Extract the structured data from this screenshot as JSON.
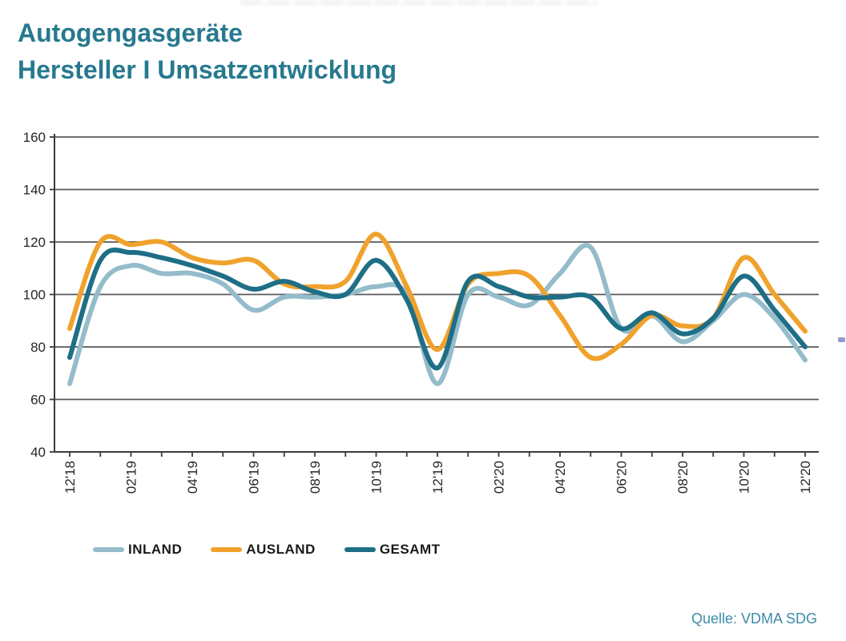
{
  "page": {
    "title_line1": "Autogengasgeräte",
    "title_line2": "Hersteller I Umsatzentwicklung",
    "source": "Quelle: VDMA SDG"
  },
  "chart_data": {
    "type": "line",
    "title": "Autogengasgeräte Hersteller I Umsatzentwicklung",
    "xlabel": "",
    "ylabel": "",
    "ylim": [
      40,
      160
    ],
    "y_ticks": [
      40,
      60,
      80,
      100,
      120,
      140,
      160
    ],
    "grid": "horizontal",
    "legend_position": "bottom",
    "x_label_every": 2,
    "x_categories": [
      "12'18",
      "01'19",
      "02'19",
      "03'19",
      "04'19",
      "05'19",
      "06'19",
      "07'19",
      "08'19",
      "09'19",
      "10'19",
      "11'19",
      "12'19",
      "01'20",
      "02'20",
      "03'20",
      "04'20",
      "05'20",
      "06'20",
      "07'20",
      "08'20",
      "09'20",
      "10'20",
      "11'20",
      "12'20"
    ],
    "shown_x_tick_labels": [
      "12'18",
      "02'19",
      "04'19",
      "06'19",
      "08'19",
      "10'19",
      "12'19",
      "02'20",
      "04'20",
      "06'20",
      "08'20",
      "10'20",
      "12'20"
    ],
    "series": [
      {
        "name": "INLAND",
        "color": "#94BCCB",
        "values": [
          66,
          103,
          111,
          108,
          108,
          104,
          94,
          99,
          99,
          100,
          103,
          100,
          66,
          100,
          99,
          96,
          108,
          118,
          87,
          92,
          82,
          90,
          100,
          91,
          75
        ]
      },
      {
        "name": "AUSLAND",
        "color": "#F0A22C",
        "values": [
          87,
          120,
          119,
          120,
          114,
          112,
          113,
          104,
          103,
          105,
          123,
          103,
          79,
          104,
          108,
          107,
          92,
          76,
          81,
          92,
          88,
          91,
          114,
          100,
          86
        ]
      },
      {
        "name": "GESAMT",
        "color": "#1E6E86",
        "values": [
          76,
          113,
          116,
          114,
          111,
          107,
          102,
          105,
          101,
          100,
          113,
          98,
          72,
          105,
          103,
          99,
          99,
          99,
          87,
          93,
          85,
          91,
          107,
          94,
          80
        ]
      }
    ],
    "axis_color": "#3a3a3a",
    "gridline_color": "#58585a",
    "tick_label_color": "#262626"
  }
}
